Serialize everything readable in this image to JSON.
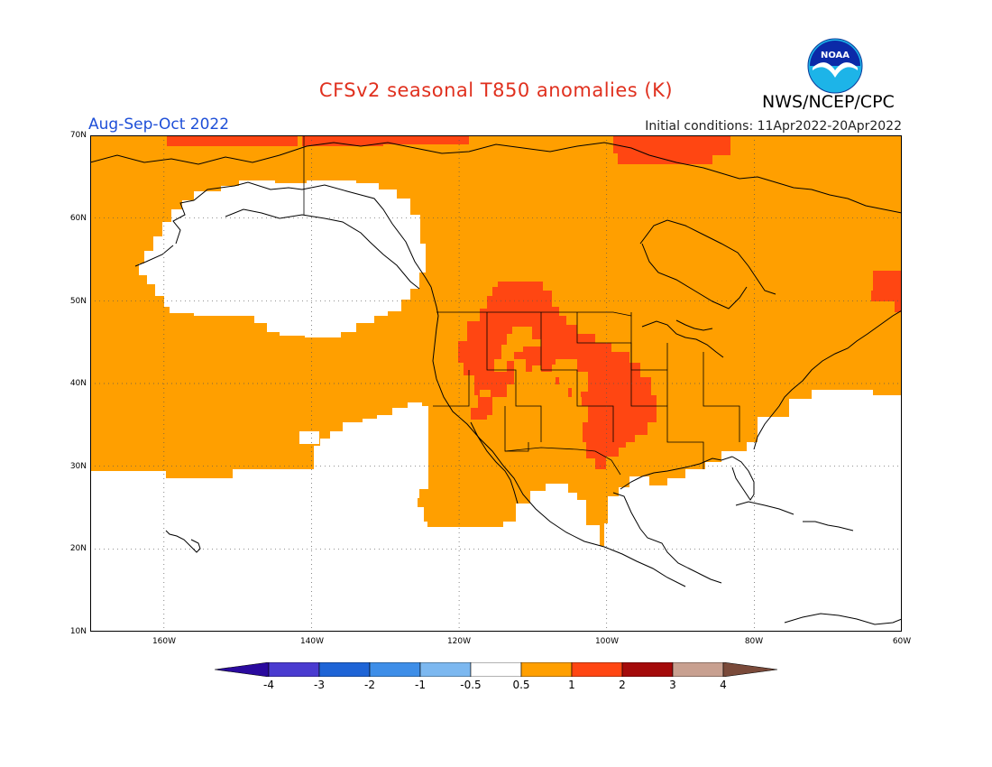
{
  "title": "CFSv2 seasonal T850 anomalies (K)",
  "agency": "NWS/NCEP/CPC",
  "logo_text": "NOAA",
  "season": "Aug-Sep-Oct 2022",
  "initial_conditions": "Initial conditions: 11Apr2022-20Apr2022",
  "lat_labels": [
    "70N",
    "60N",
    "50N",
    "40N",
    "30N",
    "20N",
    "10N"
  ],
  "lon_labels": [
    "160W",
    "140W",
    "120W",
    "100W",
    "80W",
    "60W"
  ],
  "colorbar": {
    "labels": [
      "-4",
      "-3",
      "-2",
      "-1",
      "-0.5",
      "0.5",
      "1",
      "2",
      "3",
      "4"
    ],
    "colors": [
      "#2a0a9e",
      "#4a3bd0",
      "#1e64d6",
      "#3e8ee8",
      "#7cb8f0",
      "#ffffff",
      "#ff9f00",
      "#ff4612",
      "#a40a0a",
      "#c8a090",
      "#7a4a3a"
    ]
  },
  "colors": {
    "anom_0_5_to_1": "#ff9f00",
    "anom_1_to_2": "#ff4612",
    "coastline": "#000000",
    "grid": "#555555"
  }
}
